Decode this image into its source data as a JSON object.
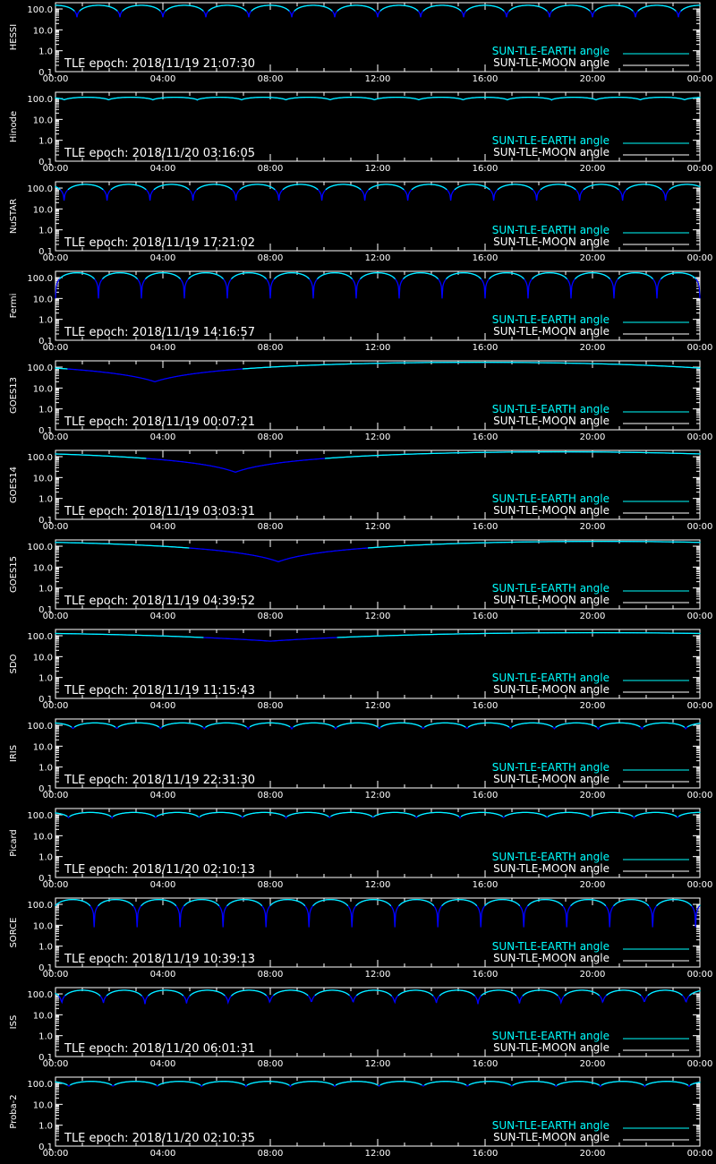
{
  "colors": {
    "background": "#000000",
    "axes": "#ffffff",
    "earth_angle": "#00ffff",
    "earth_angle_eclipse": "#0000ff",
    "moon_angle": "#ffffff"
  },
  "legend": {
    "earth": "SUN-TLE-EARTH angle",
    "moon": "SUN-TLE-MOON angle",
    "placement": "bottom-right"
  },
  "epoch_prefix": "TLE epoch: ",
  "chart_data": [
    {
      "type": "line",
      "ylabel": "HESSI",
      "epoch": "2018/11/19 21:07:30",
      "xlim": [
        0,
        24
      ],
      "ylim": [
        0.1,
        100
      ],
      "yscale": "log",
      "x_ticks": [
        "00:00",
        "04:00",
        "08:00",
        "12:00",
        "16:00",
        "20:00",
        "00:00"
      ],
      "y_ticks": [
        "0.1",
        "1.0",
        "10.0",
        "100.0"
      ],
      "orbit_period_h": 1.6,
      "max_deg": 150,
      "min_deg": 40,
      "phase": 0.0,
      "shape": "orbit"
    },
    {
      "type": "line",
      "ylabel": "Hinode",
      "epoch": "2018/11/20 03:16:05",
      "xlim": [
        0,
        24
      ],
      "ylim": [
        0.1,
        100
      ],
      "yscale": "log",
      "x_ticks": [
        "00:00",
        "04:00",
        "08:00",
        "12:00",
        "16:00",
        "20:00",
        "00:00"
      ],
      "y_ticks": [
        "0.1",
        "1.0",
        "10.0",
        "100.0"
      ],
      "orbit_period_h": 1.65,
      "max_deg": 115,
      "min_deg": 85,
      "phase": 0.3,
      "shape": "orbit"
    },
    {
      "type": "line",
      "ylabel": "NuSTAR",
      "epoch": "2018/11/19 17:21:02",
      "xlim": [
        0,
        24
      ],
      "ylim": [
        0.1,
        100
      ],
      "yscale": "log",
      "x_ticks": [
        "00:00",
        "04:00",
        "08:00",
        "12:00",
        "16:00",
        "20:00",
        "00:00"
      ],
      "y_ticks": [
        "0.1",
        "1.0",
        "10.0",
        "100.0"
      ],
      "orbit_period_h": 1.6,
      "max_deg": 150,
      "min_deg": 25,
      "phase": 0.3,
      "shape": "orbit"
    },
    {
      "type": "line",
      "ylabel": "Fermi",
      "epoch": "2018/11/19 14:16:57",
      "xlim": [
        0,
        24
      ],
      "ylim": [
        0.1,
        100
      ],
      "yscale": "log",
      "x_ticks": [
        "00:00",
        "04:00",
        "08:00",
        "12:00",
        "16:00",
        "20:00",
        "00:00"
      ],
      "y_ticks": [
        "0.1",
        "1.0",
        "10.0",
        "100.0"
      ],
      "orbit_period_h": 1.6,
      "max_deg": 170,
      "min_deg": 10,
      "phase": 0.5,
      "shape": "orbit"
    },
    {
      "type": "line",
      "ylabel": "GOES13",
      "epoch": "2018/11/19 00:07:21",
      "xlim": [
        0,
        24
      ],
      "ylim": [
        0.1,
        100
      ],
      "yscale": "log",
      "x_ticks": [
        "00:00",
        "04:00",
        "08:00",
        "12:00",
        "16:00",
        "20:00",
        "00:00"
      ],
      "y_ticks": [
        "0.1",
        "1.0",
        "10.0",
        "100.0"
      ],
      "min_time_h": 3.7,
      "max_deg": 170,
      "min_deg": 20,
      "shape": "geo"
    },
    {
      "type": "line",
      "ylabel": "GOES14",
      "epoch": "2018/11/19 03:03:31",
      "xlim": [
        0,
        24
      ],
      "ylim": [
        0.1,
        100
      ],
      "yscale": "log",
      "x_ticks": [
        "00:00",
        "04:00",
        "08:00",
        "12:00",
        "16:00",
        "20:00",
        "00:00"
      ],
      "y_ticks": [
        "0.1",
        "1.0",
        "10.0",
        "100.0"
      ],
      "min_time_h": 6.7,
      "max_deg": 170,
      "min_deg": 18,
      "shape": "geo"
    },
    {
      "type": "line",
      "ylabel": "GOES15",
      "epoch": "2018/11/19 04:39:52",
      "xlim": [
        0,
        24
      ],
      "ylim": [
        0.1,
        100
      ],
      "yscale": "log",
      "x_ticks": [
        "00:00",
        "04:00",
        "08:00",
        "12:00",
        "16:00",
        "20:00",
        "00:00"
      ],
      "y_ticks": [
        "0.1",
        "1.0",
        "10.0",
        "100.0"
      ],
      "min_time_h": 8.3,
      "max_deg": 170,
      "min_deg": 18,
      "shape": "geo"
    },
    {
      "type": "line",
      "ylabel": "SDO",
      "epoch": "2018/11/19 11:15:43",
      "xlim": [
        0,
        24
      ],
      "ylim": [
        0.1,
        100
      ],
      "yscale": "log",
      "x_ticks": [
        "00:00",
        "04:00",
        "08:00",
        "12:00",
        "16:00",
        "20:00",
        "00:00"
      ],
      "y_ticks": [
        "0.1",
        "1.0",
        "10.0",
        "100.0"
      ],
      "min_time_h": 8.0,
      "max_deg": 140,
      "min_deg": 55,
      "shape": "geo"
    },
    {
      "type": "line",
      "ylabel": "IRIS",
      "epoch": "2018/11/19 22:31:30",
      "xlim": [
        0,
        24
      ],
      "ylim": [
        0.1,
        100
      ],
      "yscale": "log",
      "x_ticks": [
        "00:00",
        "04:00",
        "08:00",
        "12:00",
        "16:00",
        "20:00",
        "00:00"
      ],
      "y_ticks": [
        "0.1",
        "1.0",
        "10.0",
        "100.0"
      ],
      "orbit_period_h": 1.63,
      "max_deg": 130,
      "min_deg": 65,
      "phase": 0.1,
      "shape": "orbit"
    },
    {
      "type": "line",
      "ylabel": "Picard",
      "epoch": "2018/11/20 02:10:13",
      "xlim": [
        0,
        24
      ],
      "ylim": [
        0.1,
        100
      ],
      "yscale": "log",
      "x_ticks": [
        "00:00",
        "04:00",
        "08:00",
        "12:00",
        "16:00",
        "20:00",
        "00:00"
      ],
      "y_ticks": [
        "0.1",
        "1.0",
        "10.0",
        "100.0"
      ],
      "orbit_period_h": 1.62,
      "max_deg": 130,
      "min_deg": 70,
      "phase": 0.2,
      "shape": "orbit"
    },
    {
      "type": "line",
      "ylabel": "SORCE",
      "epoch": "2018/11/19 10:39:13",
      "xlim": [
        0,
        24
      ],
      "ylim": [
        0.1,
        100
      ],
      "yscale": "log",
      "x_ticks": [
        "00:00",
        "04:00",
        "08:00",
        "12:00",
        "16:00",
        "20:00",
        "00:00"
      ],
      "y_ticks": [
        "0.1",
        "1.0",
        "10.0",
        "100.0"
      ],
      "orbit_period_h": 1.6,
      "max_deg": 170,
      "min_deg": 8,
      "phase": 0.6,
      "shape": "orbit"
    },
    {
      "type": "line",
      "ylabel": "ISS",
      "epoch": "2018/11/20 06:01:31",
      "xlim": [
        0,
        24
      ],
      "ylim": [
        0.1,
        100
      ],
      "yscale": "log",
      "x_ticks": [
        "00:00",
        "04:00",
        "08:00",
        "12:00",
        "16:00",
        "20:00",
        "00:00"
      ],
      "y_ticks": [
        "0.1",
        "1.0",
        "10.0",
        "100.0"
      ],
      "orbit_period_h": 1.55,
      "max_deg": 150,
      "min_deg": 30,
      "phase": 0.35,
      "shape": "orbit"
    },
    {
      "type": "line",
      "ylabel": "Proba-2",
      "epoch": "2018/11/20 02:10:35",
      "xlim": [
        0,
        24
      ],
      "ylim": [
        0.1,
        100
      ],
      "yscale": "log",
      "x_ticks": [
        "00:00",
        "04:00",
        "08:00",
        "12:00",
        "16:00",
        "20:00",
        "00:00"
      ],
      "y_ticks": [
        "0.1",
        "1.0",
        "10.0",
        "100.0"
      ],
      "orbit_period_h": 1.65,
      "max_deg": 125,
      "min_deg": 70,
      "phase": 0.2,
      "shape": "orbit"
    }
  ]
}
